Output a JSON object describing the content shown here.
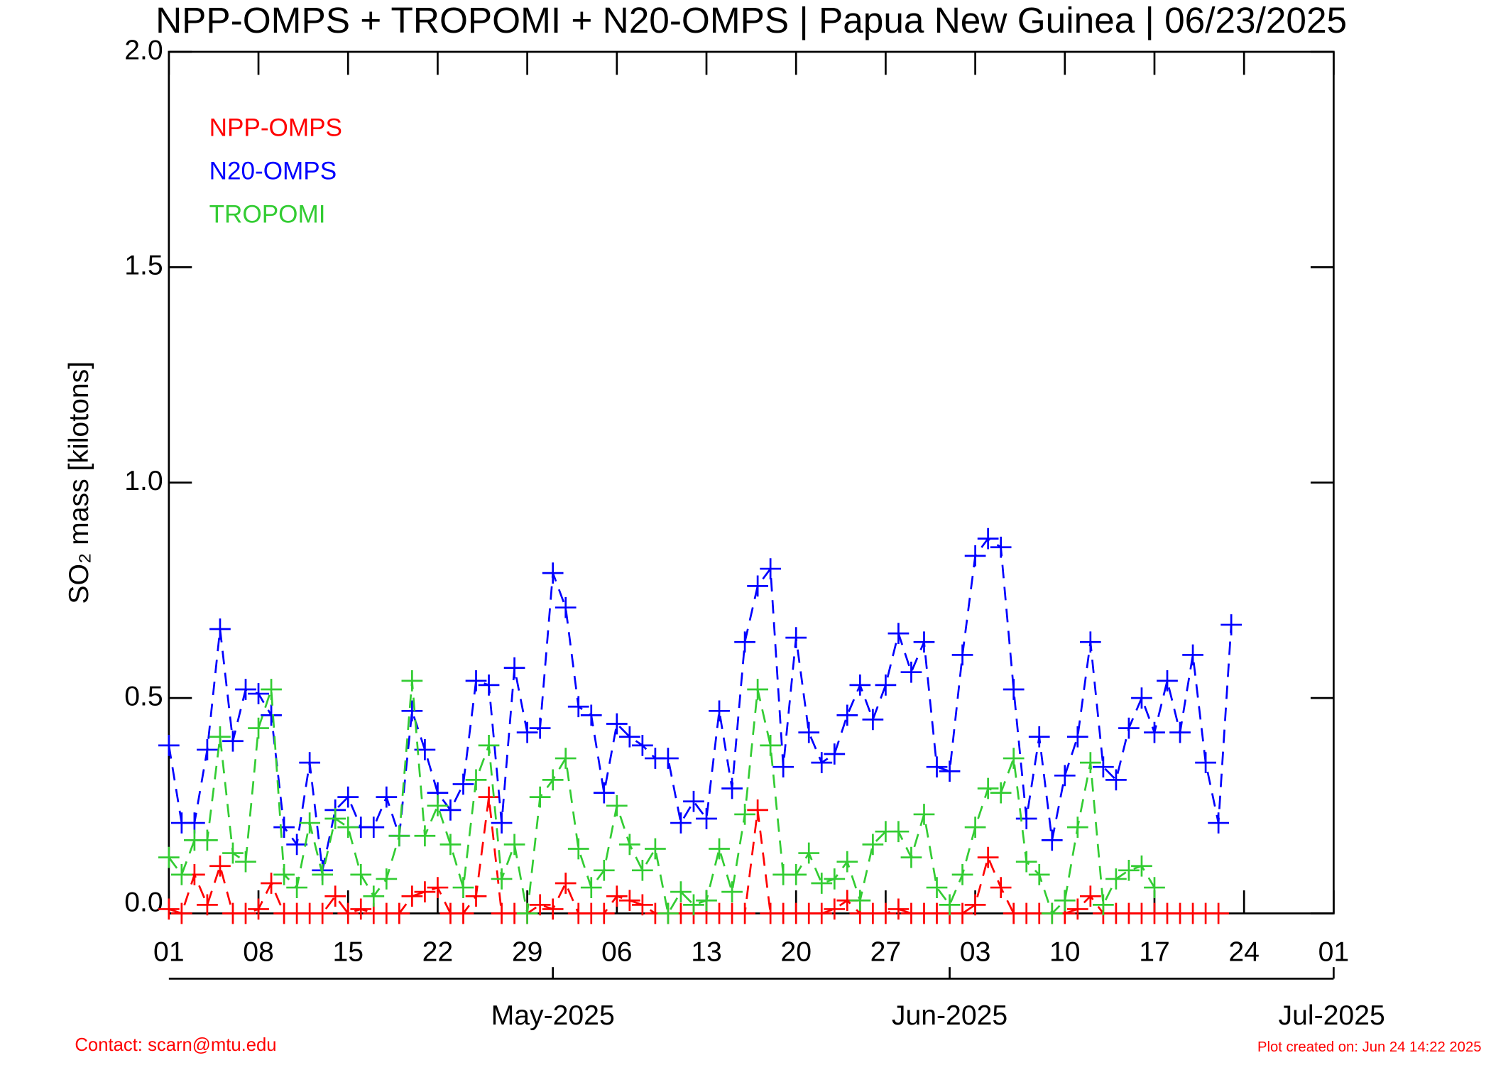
{
  "chart_data": {
    "type": "line",
    "title": "NPP-OMPS + TROPOMI + N20-OMPS | Papua New Guinea | 06/23/2025",
    "ylabel": "SO₂ mass [kilotons]",
    "x": [
      "2025-04-01",
      "2025-04-02",
      "2025-04-03",
      "2025-04-04",
      "2025-04-05",
      "2025-04-06",
      "2025-04-07",
      "2025-04-08",
      "2025-04-09",
      "2025-04-10",
      "2025-04-11",
      "2025-04-12",
      "2025-04-13",
      "2025-04-14",
      "2025-04-15",
      "2025-04-16",
      "2025-04-17",
      "2025-04-18",
      "2025-04-19",
      "2025-04-20",
      "2025-04-21",
      "2025-04-22",
      "2025-04-23",
      "2025-04-24",
      "2025-04-25",
      "2025-04-26",
      "2025-04-27",
      "2025-04-28",
      "2025-04-29",
      "2025-04-30",
      "2025-05-01",
      "2025-05-02",
      "2025-05-03",
      "2025-05-04",
      "2025-05-05",
      "2025-05-06",
      "2025-05-07",
      "2025-05-08",
      "2025-05-09",
      "2025-05-10",
      "2025-05-11",
      "2025-05-12",
      "2025-05-13",
      "2025-05-14",
      "2025-05-15",
      "2025-05-16",
      "2025-05-17",
      "2025-05-18",
      "2025-05-19",
      "2025-05-20",
      "2025-05-21",
      "2025-05-22",
      "2025-05-23",
      "2025-05-24",
      "2025-05-25",
      "2025-05-26",
      "2025-05-27",
      "2025-05-28",
      "2025-05-29",
      "2025-05-30",
      "2025-05-31",
      "2025-06-01",
      "2025-06-02",
      "2025-06-03",
      "2025-06-04",
      "2025-06-05",
      "2025-06-06",
      "2025-06-07",
      "2025-06-08",
      "2025-06-09",
      "2025-06-10",
      "2025-06-11",
      "2025-06-12",
      "2025-06-13",
      "2025-06-14",
      "2025-06-15",
      "2025-06-16",
      "2025-06-17",
      "2025-06-18",
      "2025-06-19",
      "2025-06-20",
      "2025-06-21",
      "2025-06-22",
      "2025-06-23"
    ],
    "series": [
      {
        "name": "NPP-OMPS",
        "color": "#ff0000",
        "values": [
          0.01,
          0,
          0.09,
          0.02,
          0.11,
          0,
          0,
          0.01,
          0.07,
          0,
          0,
          0,
          0,
          0.04,
          0,
          0.01,
          0,
          0,
          0,
          0.04,
          0.05,
          0.06,
          0,
          0,
          0.04,
          0.27,
          0,
          0,
          0,
          0.02,
          0.01,
          0.07,
          0,
          0,
          0,
          0.04,
          0.03,
          0.02,
          0,
          0,
          0,
          0,
          0,
          0,
          0,
          0,
          0.24,
          0,
          0,
          0,
          0,
          0,
          0.01,
          0.03,
          0,
          0,
          0,
          0.01,
          0,
          0,
          0,
          0,
          0,
          0.02,
          0.13,
          0.06,
          0,
          0,
          0,
          0,
          0,
          0.01,
          0.04,
          0,
          0,
          0,
          0,
          0,
          0,
          0,
          0,
          0,
          0,
          null
        ]
      },
      {
        "name": "N20-OMPS",
        "color": "#0000ff",
        "values": [
          0.39,
          0.21,
          0.21,
          0.38,
          0.66,
          0.4,
          0.52,
          0.51,
          0.46,
          0.2,
          0.16,
          0.35,
          0.1,
          0.24,
          0.27,
          0.2,
          0.2,
          0.27,
          0.18,
          0.47,
          0.38,
          0.28,
          0.24,
          0.3,
          0.54,
          0.53,
          0.21,
          0.57,
          0.42,
          0.43,
          0.79,
          0.71,
          0.48,
          0.46,
          0.28,
          0.44,
          0.41,
          0.39,
          0.36,
          0.36,
          0.21,
          0.26,
          0.22,
          0.47,
          0.29,
          0.63,
          0.76,
          0.8,
          0.34,
          0.64,
          0.42,
          0.35,
          0.37,
          0.46,
          0.53,
          0.45,
          0.53,
          0.65,
          0.56,
          0.63,
          0.34,
          0.33,
          0.6,
          0.83,
          0.87,
          0.85,
          0.52,
          0.22,
          0.41,
          0.17,
          0.32,
          0.41,
          0.63,
          0.34,
          0.31,
          0.43,
          0.5,
          0.42,
          0.54,
          0.42,
          0.6,
          0.35,
          0.21,
          0.67
        ]
      },
      {
        "name": "TROPOMI",
        "color": "#33cc33",
        "values": [
          0.13,
          0.09,
          0.17,
          0.17,
          0.41,
          0.14,
          0.12,
          0.43,
          0.52,
          0.09,
          0.06,
          0.21,
          0.09,
          0.22,
          0.2,
          0.09,
          0.04,
          0.08,
          0.18,
          0.54,
          0.18,
          0.25,
          0.16,
          0.06,
          0.31,
          0.39,
          0.08,
          0.16,
          0,
          0.27,
          0.31,
          0.36,
          0.15,
          0.06,
          0.1,
          0.25,
          0.16,
          0.1,
          0.15,
          0,
          0.05,
          0.02,
          0.03,
          0.15,
          0.05,
          0.23,
          0.52,
          0.39,
          0.09,
          0.09,
          0.14,
          0.07,
          0.08,
          0.12,
          0.03,
          0.16,
          0.19,
          0.19,
          0.13,
          0.23,
          0.06,
          0.02,
          0.09,
          0.2,
          0.29,
          0.28,
          0.36,
          0.12,
          0.09,
          0,
          0.03,
          0.2,
          0.35,
          0.02,
          0.08,
          0.1,
          0.11,
          0.06,
          null,
          null,
          null,
          null,
          null,
          null
        ]
      }
    ],
    "xlim": [
      "2025-04-01",
      "2025-07-01"
    ],
    "xticks": [
      {
        "value": "2025-04-01",
        "label": "01"
      },
      {
        "value": "2025-04-08",
        "label": "08"
      },
      {
        "value": "2025-04-15",
        "label": "15"
      },
      {
        "value": "2025-04-22",
        "label": "22"
      },
      {
        "value": "2025-04-29",
        "label": "29"
      },
      {
        "value": "2025-05-06",
        "label": "06"
      },
      {
        "value": "2025-05-13",
        "label": "13"
      },
      {
        "value": "2025-05-20",
        "label": "20"
      },
      {
        "value": "2025-05-27",
        "label": "27"
      },
      {
        "value": "2025-06-03",
        "label": "03"
      },
      {
        "value": "2025-06-10",
        "label": "10"
      },
      {
        "value": "2025-06-17",
        "label": "17"
      },
      {
        "value": "2025-06-24",
        "label": "24"
      },
      {
        "value": "2025-07-01",
        "label": "01"
      }
    ],
    "month_ticks": [
      {
        "value": "2025-05-01",
        "label": "May-2025"
      },
      {
        "value": "2025-06-01",
        "label": "Jun-2025"
      },
      {
        "value": "2025-07-01",
        "label": "Jul-2025"
      }
    ],
    "ylim": [
      0,
      2.0
    ],
    "yticks": [
      {
        "value": 0,
        "label": "0.0"
      },
      0.5,
      {
        "value": 1,
        "label": "1.0"
      },
      1.5,
      {
        "value": 2,
        "label": "2.0"
      }
    ],
    "legend": "upper left",
    "footer_left": "Contact: scarn@mtu.edu",
    "footer_right": "Plot created on: Jun 24 14:22 2025"
  }
}
